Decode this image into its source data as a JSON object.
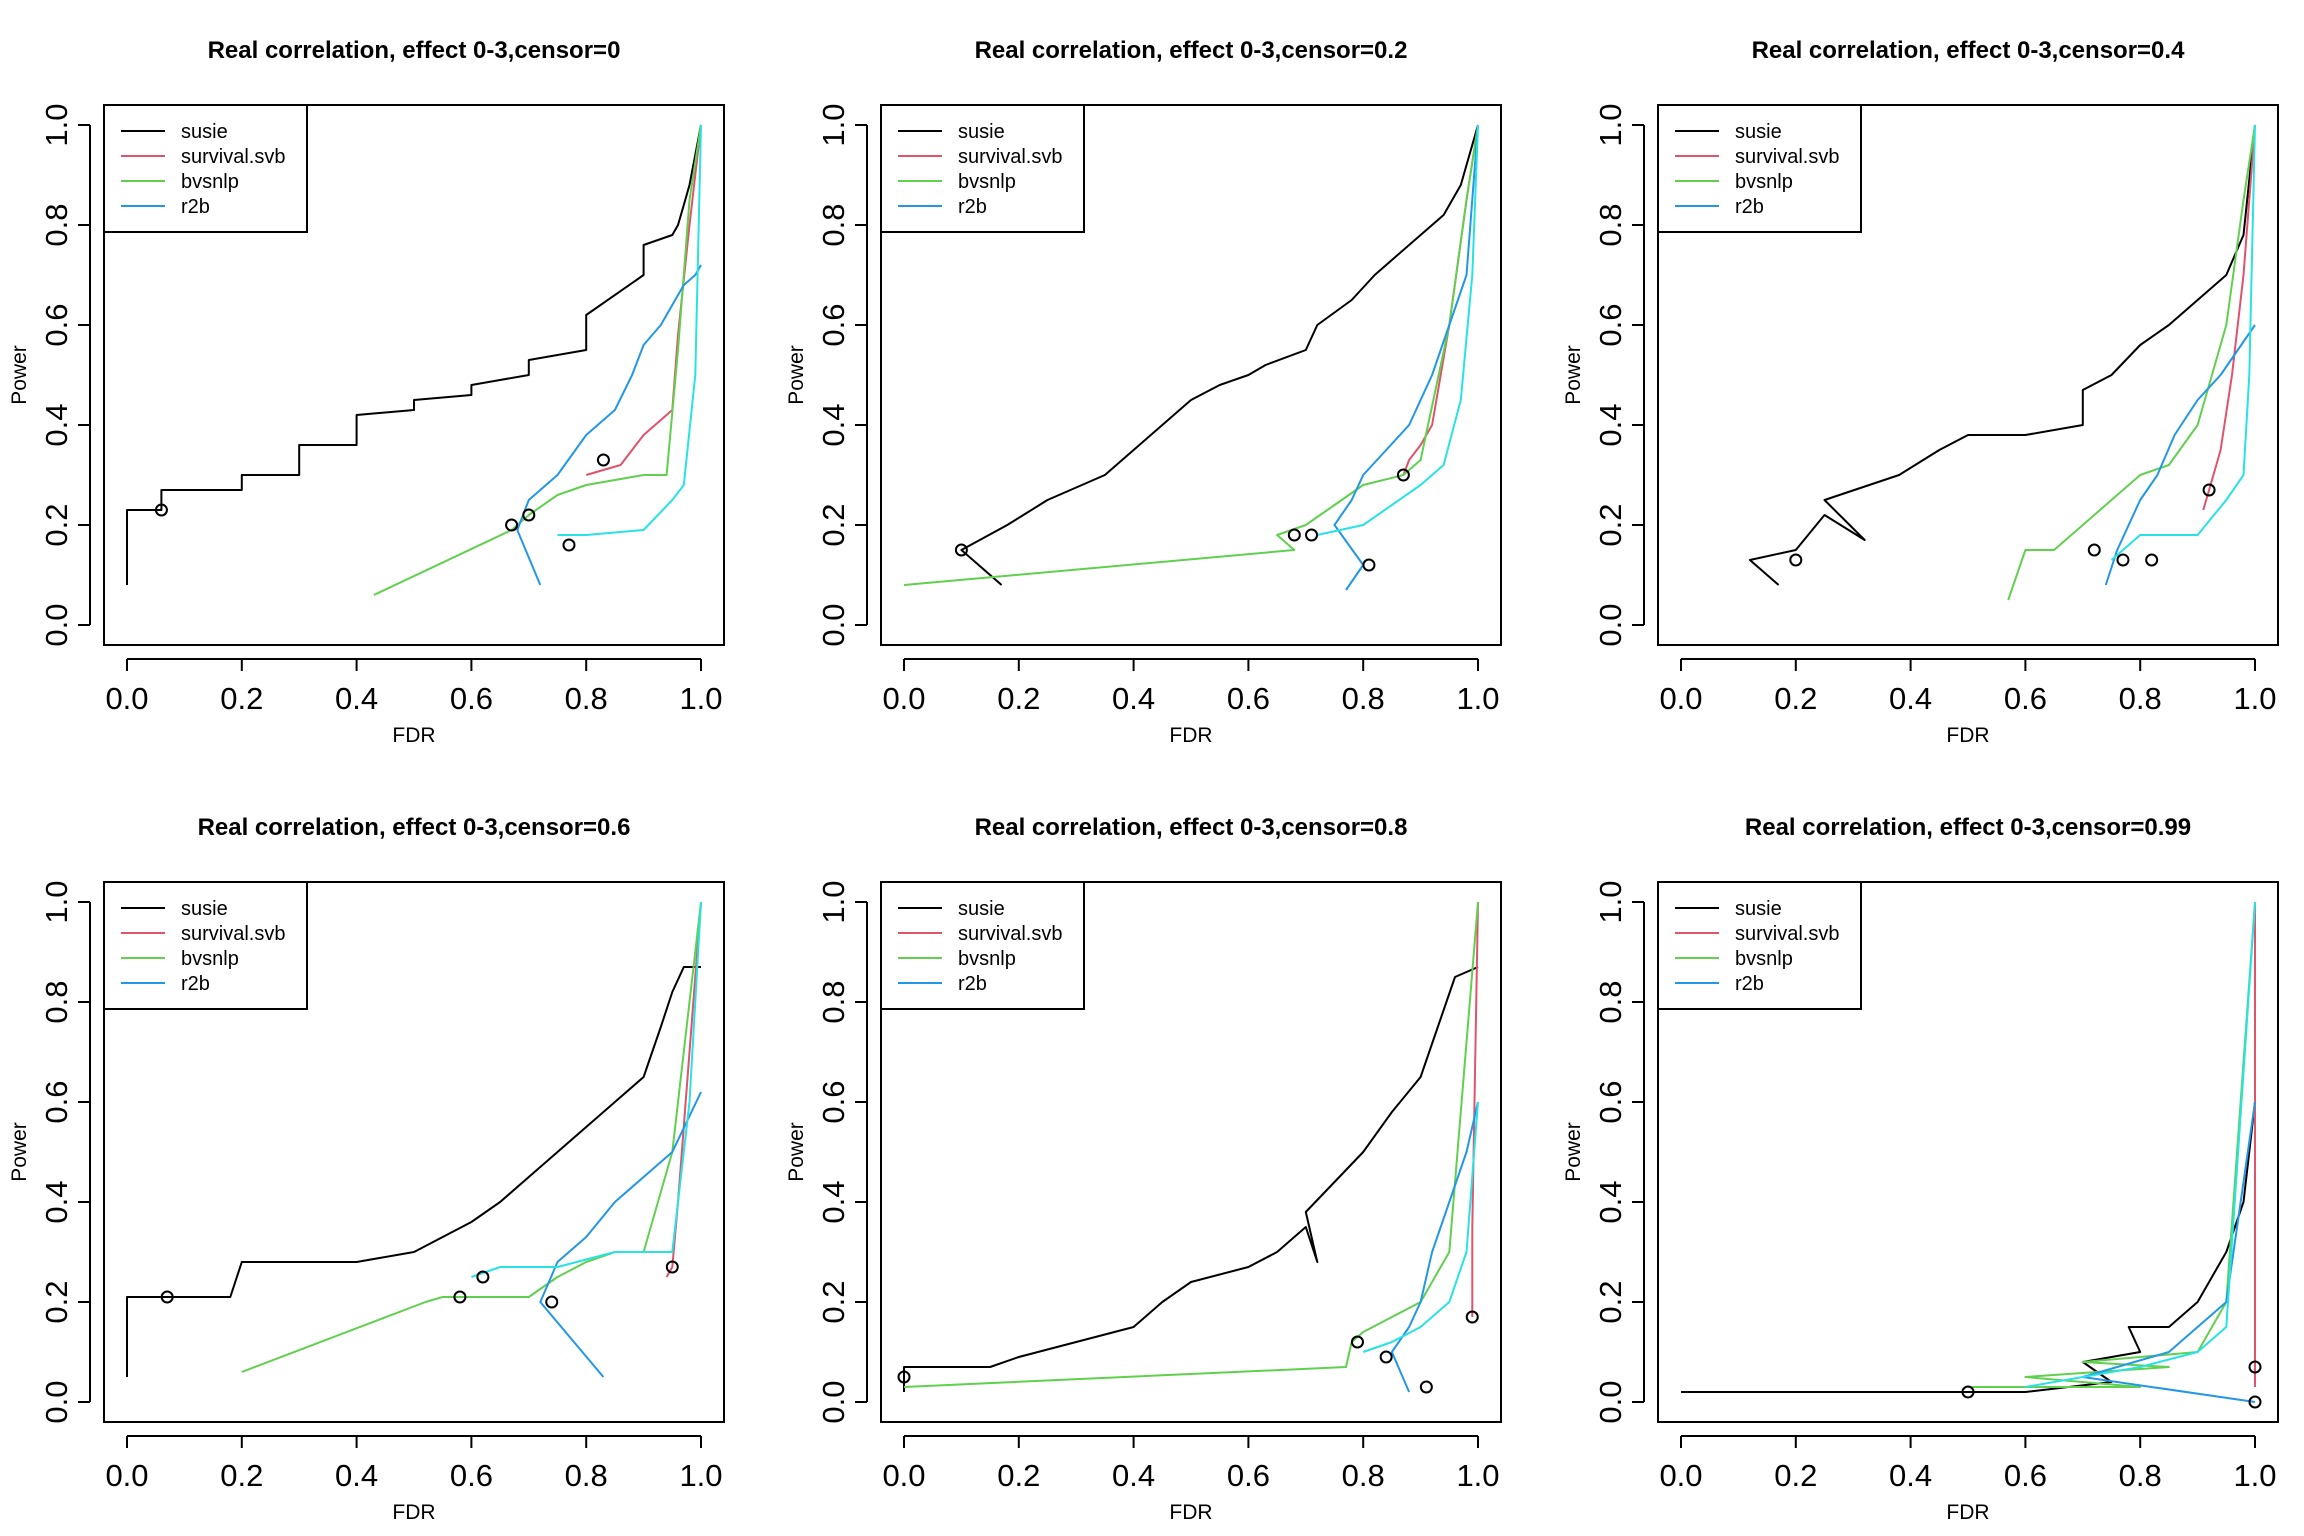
{
  "figure": {
    "xlabel": "FDR",
    "ylabel": "Power",
    "legend_entries": [
      "susie",
      "survival.svb",
      "bvsnlp",
      "r2b"
    ]
  },
  "series_colors": {
    "susie": "#000000",
    "survival.svb": "#DF536B",
    "bvsnlp": "#61D04F",
    "r2b": "#2297E6",
    "r2b_alt": "#28E2E5"
  },
  "chart_data": [
    {
      "type": "line",
      "title": "Real correlation, effect 0-3,censor=0",
      "xlabel": "FDR",
      "ylabel": "Power",
      "xlim": [
        0,
        1
      ],
      "ylim": [
        0,
        1
      ],
      "xticks": [
        "0.0",
        "0.2",
        "0.4",
        "0.6",
        "0.8",
        "1.0"
      ],
      "yticks": [
        "0.0",
        "0.2",
        "0.4",
        "0.6",
        "0.8",
        "1.0"
      ],
      "legend": "top-left",
      "grid": false,
      "series": [
        {
          "name": "susie",
          "x": [
            0,
            0,
            0.06,
            0.06,
            0.2,
            0.2,
            0.3,
            0.3,
            0.4,
            0.4,
            0.5,
            0.5,
            0.6,
            0.6,
            0.7,
            0.7,
            0.8,
            0.8,
            0.9,
            0.9,
            0.95,
            0.96,
            0.97,
            0.98,
            1.0
          ],
          "y": [
            0.08,
            0.23,
            0.23,
            0.27,
            0.27,
            0.3,
            0.3,
            0.36,
            0.36,
            0.42,
            0.43,
            0.45,
            0.46,
            0.48,
            0.5,
            0.53,
            0.55,
            0.62,
            0.7,
            0.76,
            0.78,
            0.8,
            0.84,
            0.88,
            1.0
          ]
        },
        {
          "name": "survival.svb",
          "x": [
            0.8,
            0.86,
            0.88,
            0.9,
            0.95,
            0.96,
            0.98,
            1.0
          ],
          "y": [
            0.3,
            0.32,
            0.35,
            0.38,
            0.43,
            0.58,
            0.8,
            1.0
          ]
        },
        {
          "name": "bvsnlp",
          "x": [
            0.43,
            0.67,
            0.7,
            0.7,
            0.75,
            0.8,
            0.9,
            0.94,
            0.96,
            0.98,
            1.0
          ],
          "y": [
            0.06,
            0.19,
            0.22,
            0.22,
            0.26,
            0.28,
            0.3,
            0.3,
            0.55,
            0.85,
            1.0
          ]
        },
        {
          "name": "r2b",
          "x": [
            0.72,
            0.68,
            0.7,
            0.75,
            0.8,
            0.85,
            0.88,
            0.9,
            0.93,
            0.95,
            0.97,
            0.99,
            1.0
          ],
          "y": [
            0.08,
            0.19,
            0.25,
            0.3,
            0.38,
            0.43,
            0.5,
            0.56,
            0.6,
            0.64,
            0.68,
            0.7,
            0.72
          ]
        },
        {
          "name": "r2b_alt",
          "x": [
            0.75,
            0.8,
            0.9,
            0.95,
            0.97,
            0.99,
            1.0
          ],
          "y": [
            0.18,
            0.18,
            0.19,
            0.25,
            0.28,
            0.5,
            1.0
          ]
        }
      ],
      "markers": [
        {
          "x": 0.06,
          "y": 0.23
        },
        {
          "x": 0.67,
          "y": 0.2
        },
        {
          "x": 0.7,
          "y": 0.22
        },
        {
          "x": 0.77,
          "y": 0.16
        },
        {
          "x": 0.83,
          "y": 0.33
        }
      ]
    },
    {
      "type": "line",
      "title": "Real correlation, effect 0-3,censor=0.2",
      "xlabel": "FDR",
      "ylabel": "Power",
      "xlim": [
        0,
        1
      ],
      "ylim": [
        0,
        1
      ],
      "xticks": [
        "0.0",
        "0.2",
        "0.4",
        "0.6",
        "0.8",
        "1.0"
      ],
      "yticks": [
        "0.0",
        "0.2",
        "0.4",
        "0.6",
        "0.8",
        "1.0"
      ],
      "legend": "top-left",
      "grid": false,
      "series": [
        {
          "name": "susie",
          "x": [
            0.17,
            0.1,
            0.18,
            0.25,
            0.35,
            0.4,
            0.45,
            0.5,
            0.55,
            0.6,
            0.63,
            0.7,
            0.72,
            0.78,
            0.82,
            0.86,
            0.9,
            0.94,
            0.97,
            1.0
          ],
          "y": [
            0.08,
            0.15,
            0.2,
            0.25,
            0.3,
            0.35,
            0.4,
            0.45,
            0.48,
            0.5,
            0.52,
            0.55,
            0.6,
            0.65,
            0.7,
            0.74,
            0.78,
            0.82,
            0.88,
            1.0
          ]
        },
        {
          "name": "survival.svb",
          "x": [
            0.87,
            0.88,
            0.9,
            0.92,
            0.95,
            0.98,
            1.0
          ],
          "y": [
            0.3,
            0.33,
            0.36,
            0.4,
            0.6,
            0.85,
            1.0
          ]
        },
        {
          "name": "bvsnlp",
          "x": [
            0,
            0.68,
            0.65,
            0.7,
            0.75,
            0.8,
            0.87,
            0.9,
            0.95,
            0.98,
            1.0
          ],
          "y": [
            0.08,
            0.15,
            0.18,
            0.2,
            0.24,
            0.28,
            0.3,
            0.33,
            0.6,
            0.85,
            1.0
          ]
        },
        {
          "name": "r2b",
          "x": [
            0.77,
            0.8,
            0.75,
            0.78,
            0.8,
            0.84,
            0.88,
            0.92,
            0.95,
            0.98,
            1.0
          ],
          "y": [
            0.07,
            0.12,
            0.2,
            0.25,
            0.3,
            0.35,
            0.4,
            0.5,
            0.6,
            0.7,
            1.0
          ]
        },
        {
          "name": "r2b_alt",
          "x": [
            0.72,
            0.8,
            0.85,
            0.9,
            0.94,
            0.97,
            0.99,
            1.0
          ],
          "y": [
            0.18,
            0.2,
            0.24,
            0.28,
            0.32,
            0.45,
            0.7,
            1.0
          ]
        }
      ],
      "markers": [
        {
          "x": 0.1,
          "y": 0.15
        },
        {
          "x": 0.68,
          "y": 0.18
        },
        {
          "x": 0.71,
          "y": 0.18
        },
        {
          "x": 0.81,
          "y": 0.12
        },
        {
          "x": 0.87,
          "y": 0.3
        }
      ]
    },
    {
      "type": "line",
      "title": "Real correlation, effect 0-3,censor=0.4",
      "xlabel": "FDR",
      "ylabel": "Power",
      "xlim": [
        0,
        1
      ],
      "ylim": [
        0,
        1
      ],
      "xticks": [
        "0.0",
        "0.2",
        "0.4",
        "0.6",
        "0.8",
        "1.0"
      ],
      "yticks": [
        "0.0",
        "0.2",
        "0.4",
        "0.6",
        "0.8",
        "1.0"
      ],
      "legend": "top-left",
      "grid": false,
      "series": [
        {
          "name": "susie",
          "x": [
            0.17,
            0.12,
            0.2,
            0.25,
            0.32,
            0.25,
            0.38,
            0.45,
            0.5,
            0.6,
            0.7,
            0.7,
            0.75,
            0.8,
            0.85,
            0.9,
            0.95,
            0.98,
            1.0
          ],
          "y": [
            0.08,
            0.13,
            0.15,
            0.22,
            0.17,
            0.25,
            0.3,
            0.35,
            0.38,
            0.38,
            0.4,
            0.47,
            0.5,
            0.56,
            0.6,
            0.65,
            0.7,
            0.78,
            1.0
          ]
        },
        {
          "name": "survival.svb",
          "x": [
            0.91,
            0.92,
            0.94,
            0.96,
            0.98,
            1.0
          ],
          "y": [
            0.23,
            0.27,
            0.35,
            0.5,
            0.7,
            1.0
          ]
        },
        {
          "name": "bvsnlp",
          "x": [
            0.57,
            0.6,
            0.65,
            0.7,
            0.75,
            0.8,
            0.85,
            0.9,
            0.95,
            0.98,
            1.0
          ],
          "y": [
            0.05,
            0.15,
            0.15,
            0.2,
            0.25,
            0.3,
            0.32,
            0.4,
            0.6,
            0.85,
            1.0
          ]
        },
        {
          "name": "r2b",
          "x": [
            0.74,
            0.76,
            0.78,
            0.8,
            0.83,
            0.86,
            0.9,
            0.94,
            0.97,
            1.0
          ],
          "y": [
            0.08,
            0.15,
            0.2,
            0.25,
            0.3,
            0.38,
            0.45,
            0.5,
            0.55,
            0.6
          ]
        },
        {
          "name": "r2b_alt",
          "x": [
            0.75,
            0.8,
            0.9,
            0.95,
            0.98,
            0.99,
            1.0
          ],
          "y": [
            0.13,
            0.18,
            0.18,
            0.25,
            0.3,
            0.5,
            1.0
          ]
        }
      ],
      "markers": [
        {
          "x": 0.2,
          "y": 0.13
        },
        {
          "x": 0.72,
          "y": 0.15
        },
        {
          "x": 0.77,
          "y": 0.13
        },
        {
          "x": 0.82,
          "y": 0.13
        },
        {
          "x": 0.92,
          "y": 0.27
        }
      ]
    },
    {
      "type": "line",
      "title": "Real correlation, effect 0-3,censor=0.6",
      "xlabel": "FDR",
      "ylabel": "Power",
      "xlim": [
        0,
        1
      ],
      "ylim": [
        0,
        1
      ],
      "xticks": [
        "0.0",
        "0.2",
        "0.4",
        "0.6",
        "0.8",
        "1.0"
      ],
      "yticks": [
        "0.0",
        "0.2",
        "0.4",
        "0.6",
        "0.8",
        "1.0"
      ],
      "legend": "top-left",
      "grid": false,
      "series": [
        {
          "name": "susie",
          "x": [
            0,
            0,
            0.18,
            0.2,
            0.4,
            0.5,
            0.55,
            0.6,
            0.65,
            0.7,
            0.75,
            0.8,
            0.85,
            0.9,
            0.93,
            0.95,
            0.97,
            1.0
          ],
          "y": [
            0.05,
            0.21,
            0.21,
            0.28,
            0.28,
            0.3,
            0.33,
            0.36,
            0.4,
            0.45,
            0.5,
            0.55,
            0.6,
            0.65,
            0.75,
            0.82,
            0.87,
            0.87
          ]
        },
        {
          "name": "survival.svb",
          "x": [
            0.94,
            0.95,
            0.96,
            0.98,
            1.0
          ],
          "y": [
            0.25,
            0.27,
            0.4,
            0.7,
            1.0
          ]
        },
        {
          "name": "bvsnlp",
          "x": [
            0.2,
            0.52,
            0.55,
            0.6,
            0.65,
            0.7,
            0.75,
            0.8,
            0.85,
            0.9,
            0.95,
            0.98,
            1.0
          ],
          "y": [
            0.06,
            0.2,
            0.21,
            0.21,
            0.21,
            0.21,
            0.25,
            0.28,
            0.3,
            0.3,
            0.5,
            0.8,
            1.0
          ]
        },
        {
          "name": "r2b",
          "x": [
            0.83,
            0.72,
            0.75,
            0.8,
            0.85,
            0.9,
            0.95,
            1.0
          ],
          "y": [
            0.05,
            0.2,
            0.28,
            0.33,
            0.4,
            0.45,
            0.5,
            0.62
          ]
        },
        {
          "name": "r2b_alt",
          "x": [
            0.6,
            0.65,
            0.75,
            0.85,
            0.95,
            0.98,
            1.0
          ],
          "y": [
            0.25,
            0.27,
            0.27,
            0.3,
            0.3,
            0.6,
            1.0
          ]
        }
      ],
      "markers": [
        {
          "x": 0.07,
          "y": 0.21
        },
        {
          "x": 0.58,
          "y": 0.21
        },
        {
          "x": 0.62,
          "y": 0.25
        },
        {
          "x": 0.74,
          "y": 0.2
        },
        {
          "x": 0.95,
          "y": 0.27
        }
      ]
    },
    {
      "type": "line",
      "title": "Real correlation, effect 0-3,censor=0.8",
      "xlabel": "FDR",
      "ylabel": "Power",
      "xlim": [
        0,
        1
      ],
      "ylim": [
        0,
        1
      ],
      "xticks": [
        "0.0",
        "0.2",
        "0.4",
        "0.6",
        "0.8",
        "1.0"
      ],
      "yticks": [
        "0.0",
        "0.2",
        "0.4",
        "0.6",
        "0.8",
        "1.0"
      ],
      "legend": "top-left",
      "grid": false,
      "series": [
        {
          "name": "susie",
          "x": [
            0,
            0,
            0.15,
            0.2,
            0.3,
            0.4,
            0.45,
            0.5,
            0.6,
            0.65,
            0.7,
            0.72,
            0.7,
            0.75,
            0.8,
            0.85,
            0.9,
            0.93,
            0.96,
            1.0
          ],
          "y": [
            0.02,
            0.07,
            0.07,
            0.09,
            0.12,
            0.15,
            0.2,
            0.24,
            0.27,
            0.3,
            0.35,
            0.28,
            0.38,
            0.44,
            0.5,
            0.58,
            0.65,
            0.75,
            0.85,
            0.87
          ]
        },
        {
          "name": "survival.svb",
          "x": [
            0.99,
            0.99,
            1.0
          ],
          "y": [
            0.17,
            0.35,
            1.0
          ]
        },
        {
          "name": "bvsnlp",
          "x": [
            0,
            0.77,
            0.78,
            0.8,
            0.85,
            0.9,
            0.95,
            1.0
          ],
          "y": [
            0.03,
            0.07,
            0.12,
            0.14,
            0.17,
            0.2,
            0.3,
            1.0
          ]
        },
        {
          "name": "r2b",
          "x": [
            0.88,
            0.85,
            0.88,
            0.9,
            0.92,
            0.95,
            0.98,
            1.0
          ],
          "y": [
            0.02,
            0.1,
            0.15,
            0.2,
            0.3,
            0.4,
            0.5,
            0.6
          ]
        },
        {
          "name": "r2b_alt",
          "x": [
            0.8,
            0.85,
            0.9,
            0.95,
            0.98,
            1.0
          ],
          "y": [
            0.1,
            0.12,
            0.15,
            0.2,
            0.3,
            0.6
          ]
        }
      ],
      "markers": [
        {
          "x": 0,
          "y": 0.05
        },
        {
          "x": 0.79,
          "y": 0.12
        },
        {
          "x": 0.84,
          "y": 0.09
        },
        {
          "x": 0.91,
          "y": 0.03
        },
        {
          "x": 0.99,
          "y": 0.17
        }
      ]
    },
    {
      "type": "line",
      "title": "Real correlation, effect 0-3,censor=0.99",
      "xlabel": "FDR",
      "ylabel": "Power",
      "xlim": [
        0,
        1
      ],
      "ylim": [
        0,
        1
      ],
      "xticks": [
        "0.0",
        "0.2",
        "0.4",
        "0.6",
        "0.8",
        "1.0"
      ],
      "yticks": [
        "0.0",
        "0.2",
        "0.4",
        "0.6",
        "0.8",
        "1.0"
      ],
      "legend": "top-left",
      "grid": false,
      "series": [
        {
          "name": "susie",
          "x": [
            0,
            0.5,
            0.6,
            0.75,
            0.7,
            0.8,
            0.78,
            0.85,
            0.9,
            0.95,
            0.98,
            1.0
          ],
          "y": [
            0.02,
            0.02,
            0.02,
            0.04,
            0.08,
            0.1,
            0.15,
            0.15,
            0.2,
            0.3,
            0.4,
            0.6
          ]
        },
        {
          "name": "survival.svb",
          "x": [
            1.0,
            1.0,
            1.0
          ],
          "y": [
            0.03,
            0.07,
            1.0
          ]
        },
        {
          "name": "bvsnlp",
          "x": [
            0.5,
            0.8,
            0.6,
            0.85,
            0.7,
            0.9,
            0.95,
            1.0
          ],
          "y": [
            0.03,
            0.03,
            0.05,
            0.07,
            0.08,
            0.1,
            0.2,
            1.0
          ]
        },
        {
          "name": "r2b",
          "x": [
            1.0,
            0.7,
            0.85,
            0.9,
            0.95,
            1.0
          ],
          "y": [
            0.0,
            0.05,
            0.1,
            0.15,
            0.2,
            0.6
          ]
        },
        {
          "name": "r2b_alt",
          "x": [
            0.6,
            0.8,
            0.9,
            0.95,
            1.0
          ],
          "y": [
            0.03,
            0.07,
            0.1,
            0.15,
            1.0
          ]
        }
      ],
      "markers": [
        {
          "x": 0.5,
          "y": 0.02
        },
        {
          "x": 1.0,
          "y": 0.07
        },
        {
          "x": 1.0,
          "y": 0.0
        }
      ]
    }
  ]
}
